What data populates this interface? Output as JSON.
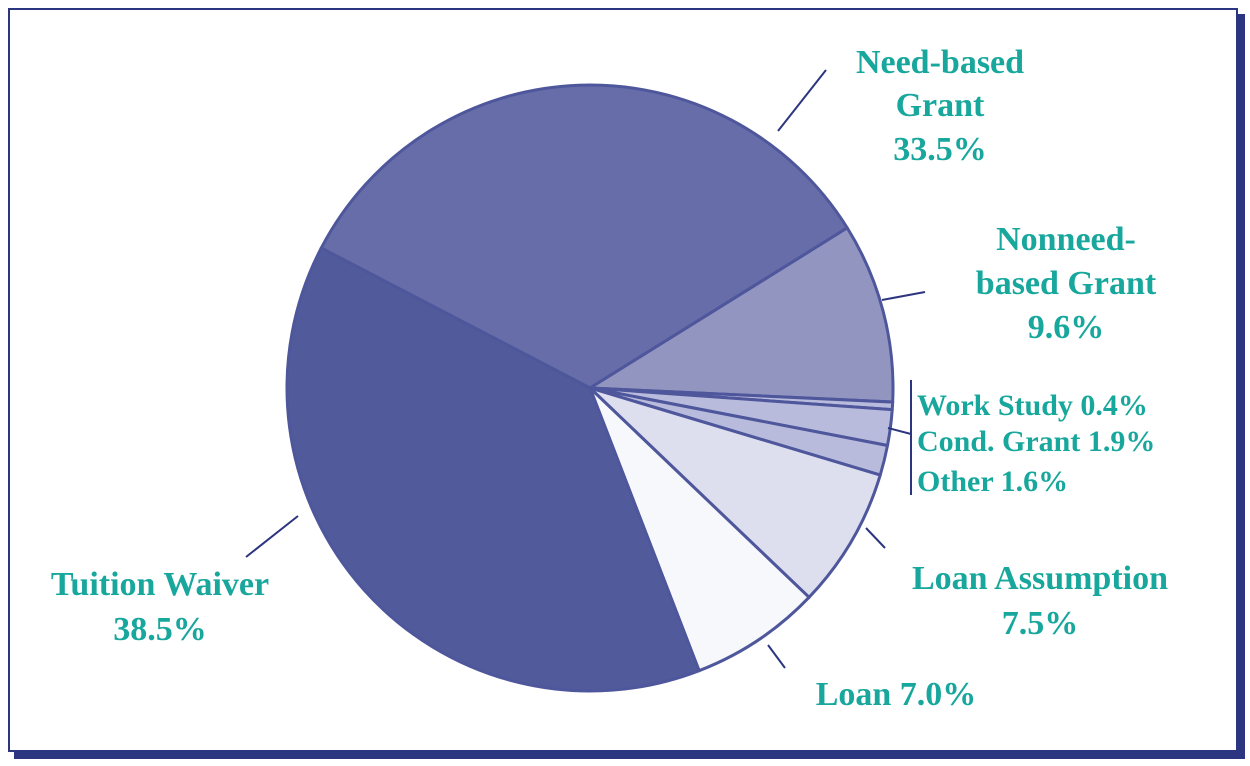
{
  "chart_data": {
    "type": "pie",
    "title": "",
    "slices": [
      {
        "label": "Need-based Grant",
        "value": 33.5,
        "color": "#676da9"
      },
      {
        "label": "Nonneed-based Grant",
        "value": 9.6,
        "color": "#9395c1"
      },
      {
        "label": "Work Study",
        "value": 0.4,
        "color": "#b9bbdc"
      },
      {
        "label": "Cond. Grant",
        "value": 1.9,
        "color": "#b9bbdc"
      },
      {
        "label": "Other",
        "value": 1.6,
        "color": "#b9bbdc"
      },
      {
        "label": "Loan Assumption",
        "value": 7.5,
        "color": "#dddfee"
      },
      {
        "label": "Loan",
        "value": 7.0,
        "color": "#f7f8fb"
      },
      {
        "label": "Tuition Waiver",
        "value": 38.5,
        "color": "#515a9b"
      }
    ],
    "slice_border_color": "#4f579c",
    "label_color": "#17a79c",
    "leader_color": "#2c3580",
    "legend": "labels placed around pie"
  },
  "labels": {
    "need_based_1": "Need-based",
    "need_based_2": "Grant",
    "need_based_3": "33.5%",
    "nonneed_1": "Nonneed-",
    "nonneed_2": "based Grant",
    "nonneed_3": "9.6%",
    "work_study": "Work Study 0.4%",
    "cond_grant": "Cond. Grant 1.9%",
    "other": "Other 1.6%",
    "loan_assumption_1": "Loan Assumption",
    "loan_assumption_2": "7.5%",
    "loan": "Loan 7.0%",
    "tuition_1": "Tuition Waiver",
    "tuition_2": "38.5%"
  }
}
